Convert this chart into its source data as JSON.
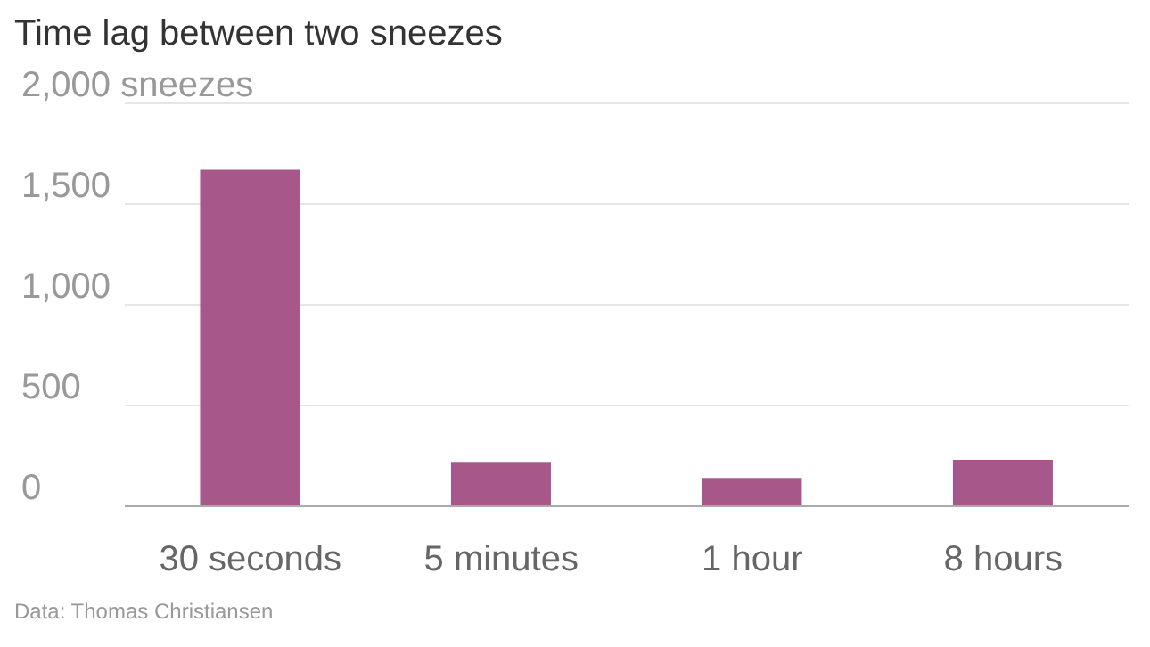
{
  "chart_data": {
    "type": "bar",
    "title": "Time lag between two sneezes",
    "categories": [
      "30 seconds",
      "5 minutes",
      "1 hour",
      "8 hours"
    ],
    "values": [
      1670,
      220,
      140,
      230
    ],
    "color": "#a8578a",
    "ylim": [
      0,
      2000
    ],
    "yticks": [
      0,
      {
        "value": 500,
        "label": "500"
      },
      {
        "value": 1000,
        "label": "1,000"
      },
      {
        "value": 1500,
        "label": "1,500"
      },
      {
        "value": 2000,
        "label": "2,000 sneezes"
      }
    ],
    "grid": "y",
    "annotations": [
      "Data: Thomas Christiansen"
    ]
  }
}
